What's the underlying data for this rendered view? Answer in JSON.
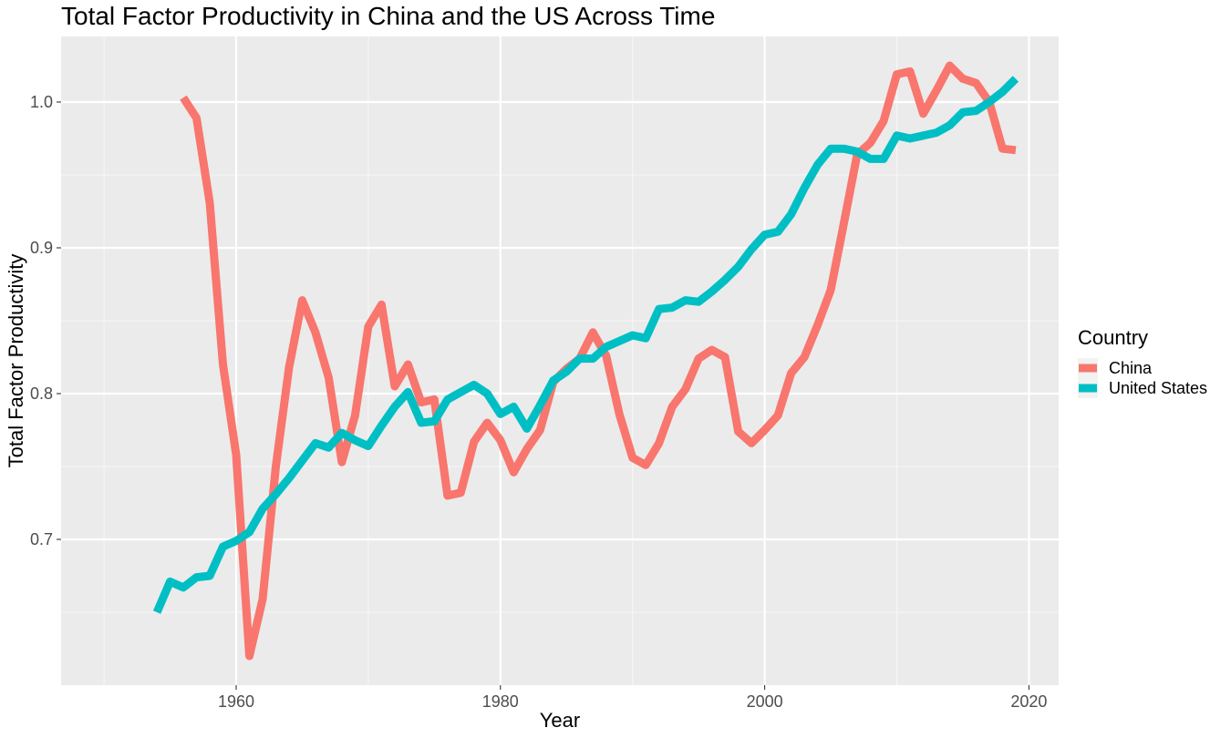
{
  "chart_data": {
    "type": "line",
    "title": "Total Factor Productivity in China and the US Across Time",
    "xlabel": "Year",
    "ylabel": "Total Factor Productivity",
    "xlim": [
      1946.75,
      2022.25
    ],
    "ylim": [
      0.6,
      1.045
    ],
    "x_ticks": [
      1960,
      1980,
      2000,
      2020
    ],
    "x_minor": [
      1950,
      1970,
      1990,
      2010
    ],
    "y_ticks": [
      0.7,
      0.8,
      0.9,
      1.0
    ],
    "y_minor": [
      0.65,
      0.75,
      0.85,
      0.95
    ],
    "x_tick_labels": [
      "1960",
      "1980",
      "2000",
      "2020"
    ],
    "y_tick_labels": [
      "0.7",
      "0.8",
      "0.9",
      "1.0"
    ],
    "grid": true,
    "legend": {
      "title": "Country",
      "position": "right"
    },
    "series": [
      {
        "name": "China",
        "color": "#F8766D",
        "x": [
          1956,
          1957,
          1958,
          1959,
          1960,
          1961,
          1962,
          1963,
          1964,
          1965,
          1966,
          1967,
          1968,
          1969,
          1970,
          1971,
          1972,
          1973,
          1974,
          1975,
          1976,
          1977,
          1978,
          1979,
          1980,
          1981,
          1982,
          1983,
          1984,
          1985,
          1986,
          1987,
          1988,
          1989,
          1990,
          1991,
          1992,
          1993,
          1994,
          1995,
          1996,
          1997,
          1998,
          1999,
          2000,
          2001,
          2002,
          2003,
          2004,
          2005,
          2006,
          2007,
          2008,
          2009,
          2010,
          2011,
          2012,
          2013,
          2014,
          2015,
          2016,
          2017,
          2018,
          2019
        ],
        "values": [
          1.003,
          0.989,
          0.931,
          0.82,
          0.758,
          0.62,
          0.659,
          0.75,
          0.818,
          0.864,
          0.842,
          0.811,
          0.753,
          0.785,
          0.846,
          0.861,
          0.805,
          0.82,
          0.794,
          0.796,
          0.73,
          0.732,
          0.767,
          0.78,
          0.768,
          0.746,
          0.762,
          0.775,
          0.808,
          0.817,
          0.824,
          0.842,
          0.826,
          0.786,
          0.756,
          0.751,
          0.766,
          0.791,
          0.803,
          0.824,
          0.83,
          0.825,
          0.774,
          0.766,
          0.775,
          0.785,
          0.814,
          0.825,
          0.847,
          0.871,
          0.917,
          0.964,
          0.972,
          0.987,
          1.019,
          1.021,
          0.992,
          1.008,
          1.025,
          1.016,
          1.013,
          1.0,
          0.968,
          0.967
        ]
      },
      {
        "name": "United States",
        "color": "#00BFC4",
        "x": [
          1954,
          1955,
          1956,
          1957,
          1958,
          1959,
          1960,
          1961,
          1962,
          1963,
          1964,
          1965,
          1966,
          1967,
          1968,
          1969,
          1970,
          1971,
          1972,
          1973,
          1974,
          1975,
          1976,
          1977,
          1978,
          1979,
          1980,
          1981,
          1982,
          1983,
          1984,
          1985,
          1986,
          1987,
          1988,
          1989,
          1990,
          1991,
          1992,
          1993,
          1994,
          1995,
          1996,
          1997,
          1998,
          1999,
          2000,
          2001,
          2002,
          2003,
          2004,
          2005,
          2006,
          2007,
          2008,
          2009,
          2010,
          2011,
          2012,
          2013,
          2014,
          2015,
          2016,
          2017,
          2018,
          2019
        ],
        "values": [
          0.65,
          0.671,
          0.667,
          0.674,
          0.675,
          0.695,
          0.699,
          0.705,
          0.721,
          0.731,
          0.742,
          0.754,
          0.766,
          0.763,
          0.773,
          0.768,
          0.764,
          0.778,
          0.791,
          0.801,
          0.78,
          0.781,
          0.796,
          0.801,
          0.806,
          0.8,
          0.786,
          0.791,
          0.776,
          0.792,
          0.809,
          0.815,
          0.824,
          0.824,
          0.832,
          0.836,
          0.84,
          0.838,
          0.858,
          0.859,
          0.864,
          0.863,
          0.87,
          0.878,
          0.887,
          0.899,
          0.909,
          0.911,
          0.923,
          0.941,
          0.957,
          0.968,
          0.968,
          0.966,
          0.961,
          0.961,
          0.977,
          0.975,
          0.977,
          0.979,
          0.984,
          0.993,
          0.994,
          1.0,
          1.007,
          1.016
        ]
      }
    ]
  }
}
